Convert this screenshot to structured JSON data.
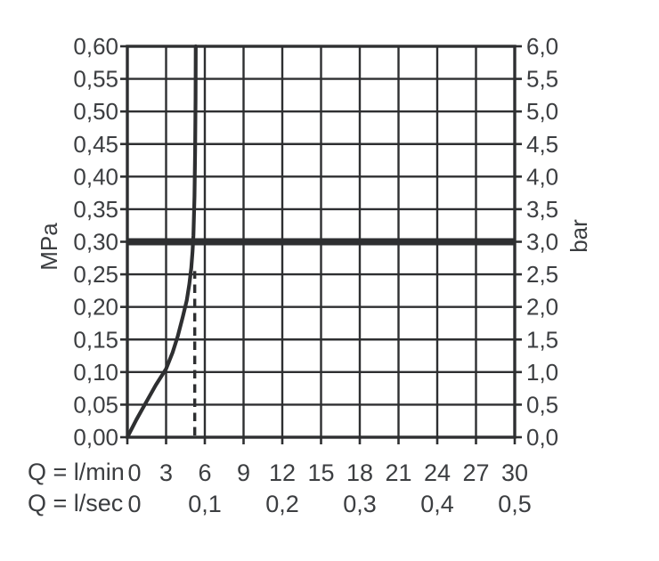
{
  "chart_data": {
    "type": "line",
    "title": "",
    "description": "Flow rate / pressure diagram with flow limiter curve",
    "background": "#ffffff",
    "grid": true,
    "x_range": [
      0,
      30
    ],
    "y_range_mpa": [
      0,
      0.6
    ],
    "colors": {
      "line": "#2e2f31",
      "text": "#3c3e41",
      "background": "#ffffff"
    },
    "left_axis": {
      "title": "MPa",
      "ticks": [
        {
          "label": "0,60",
          "value": 0.6
        },
        {
          "label": "0,55",
          "value": 0.55
        },
        {
          "label": "0,50",
          "value": 0.5
        },
        {
          "label": "0,45",
          "value": 0.45
        },
        {
          "label": "0,40",
          "value": 0.4
        },
        {
          "label": "0,35",
          "value": 0.35
        },
        {
          "label": "0,30",
          "value": 0.3
        },
        {
          "label": "0,25",
          "value": 0.25
        },
        {
          "label": "0,20",
          "value": 0.2
        },
        {
          "label": "0,15",
          "value": 0.15
        },
        {
          "label": "0,10",
          "value": 0.1
        },
        {
          "label": "0,05",
          "value": 0.05
        },
        {
          "label": "0,00",
          "value": 0.0
        }
      ]
    },
    "right_axis": {
      "title": "bar",
      "ticks": [
        {
          "label": "6,0",
          "value": 0.6
        },
        {
          "label": "5,5",
          "value": 0.55
        },
        {
          "label": "5,0",
          "value": 0.5
        },
        {
          "label": "4,5",
          "value": 0.45
        },
        {
          "label": "4,0",
          "value": 0.4
        },
        {
          "label": "3,5",
          "value": 0.35
        },
        {
          "label": "3,0",
          "value": 0.3
        },
        {
          "label": "2,5",
          "value": 0.25
        },
        {
          "label": "2,0",
          "value": 0.2
        },
        {
          "label": "1,5",
          "value": 0.15
        },
        {
          "label": "1,0",
          "value": 0.1
        },
        {
          "label": "0,5",
          "value": 0.05
        },
        {
          "label": "0,0",
          "value": 0.0
        }
      ]
    },
    "x_axis_primary": {
      "label": "Q = l/min",
      "ticks": [
        {
          "label": "0",
          "value": 0,
          "dx": 8
        },
        {
          "label": "3",
          "value": 3
        },
        {
          "label": "6",
          "value": 6
        },
        {
          "label": "9",
          "value": 9
        },
        {
          "label": "12",
          "value": 12
        },
        {
          "label": "15",
          "value": 15
        },
        {
          "label": "18",
          "value": 18
        },
        {
          "label": "21",
          "value": 21
        },
        {
          "label": "24",
          "value": 24
        },
        {
          "label": "27",
          "value": 27
        },
        {
          "label": "30",
          "value": 30
        }
      ]
    },
    "x_axis_secondary": {
      "label": "Q = l/sec",
      "ticks": [
        {
          "label": "0",
          "value": 0,
          "dx": 8
        },
        {
          "label": "0,1",
          "value": 6
        },
        {
          "label": "0,2",
          "value": 12
        },
        {
          "label": "0,3",
          "value": 18
        },
        {
          "label": "0,4",
          "value": 24
        },
        {
          "label": "0,5",
          "value": 30
        }
      ]
    },
    "reference_line_mpa": 0.3,
    "dashed_line": {
      "x_lmin": 5.22,
      "mpa_from": 0,
      "mpa_to": 0.255
    },
    "series": [
      {
        "name": "flow-curve",
        "points_lmin_mpa": [
          [
            0,
            0
          ],
          [
            0.7,
            0.027
          ],
          [
            1.35,
            0.05
          ],
          [
            2.2,
            0.08
          ],
          [
            3.0,
            0.105
          ],
          [
            3.5,
            0.13
          ],
          [
            3.9,
            0.155
          ],
          [
            4.3,
            0.185
          ],
          [
            4.6,
            0.21
          ],
          [
            4.8,
            0.235
          ],
          [
            4.95,
            0.26
          ],
          [
            5.05,
            0.285
          ],
          [
            5.12,
            0.31
          ],
          [
            5.2,
            0.37
          ],
          [
            5.25,
            0.44
          ],
          [
            5.28,
            0.52
          ],
          [
            5.3,
            0.6
          ]
        ]
      }
    ]
  }
}
